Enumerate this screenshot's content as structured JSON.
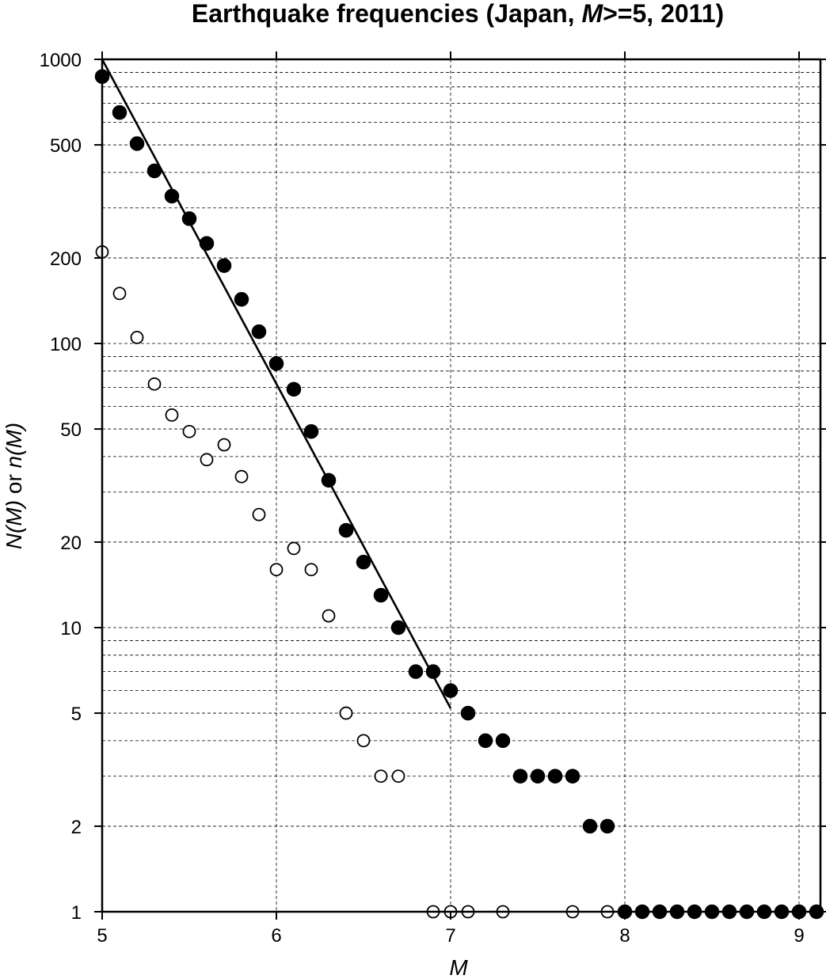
{
  "chart_data": {
    "type": "scatter",
    "title_parts": [
      "Earthquake frequencies (Japan, ",
      "M",
      ">=5, 2011)"
    ],
    "xlabel": "M",
    "ylabel_parts": [
      "N(M)",
      " or ",
      "n(M)"
    ],
    "xlim": [
      5,
      9.1
    ],
    "ylim": [
      1,
      1000
    ],
    "yscale": "log",
    "grid": true,
    "x_ticks": [
      5,
      6,
      7,
      8,
      9
    ],
    "y_ticks": [
      1,
      2,
      5,
      10,
      20,
      50,
      100,
      200,
      500,
      1000
    ],
    "series": [
      {
        "marker": "filled-circle",
        "points": [
          [
            5.0,
            870
          ],
          [
            5.1,
            650
          ],
          [
            5.2,
            505
          ],
          [
            5.3,
            405
          ],
          [
            5.4,
            330
          ],
          [
            5.5,
            275
          ],
          [
            5.6,
            225
          ],
          [
            5.7,
            188
          ],
          [
            5.8,
            143
          ],
          [
            5.9,
            110
          ],
          [
            6.0,
            85
          ],
          [
            6.1,
            69
          ],
          [
            6.2,
            49
          ],
          [
            6.3,
            33
          ],
          [
            6.4,
            22
          ],
          [
            6.5,
            17
          ],
          [
            6.6,
            13
          ],
          [
            6.7,
            10
          ],
          [
            6.8,
            7
          ],
          [
            6.9,
            7
          ],
          [
            7.0,
            6
          ],
          [
            7.1,
            5
          ],
          [
            7.2,
            4
          ],
          [
            7.3,
            4
          ],
          [
            7.4,
            3
          ],
          [
            7.5,
            3
          ],
          [
            7.6,
            3
          ],
          [
            7.7,
            3
          ],
          [
            7.8,
            2
          ],
          [
            7.9,
            2
          ],
          [
            8.0,
            1
          ],
          [
            8.1,
            1
          ],
          [
            8.2,
            1
          ],
          [
            8.3,
            1
          ],
          [
            8.4,
            1
          ],
          [
            8.5,
            1
          ],
          [
            8.6,
            1
          ],
          [
            8.7,
            1
          ],
          [
            8.8,
            1
          ],
          [
            8.9,
            1
          ],
          [
            9.0,
            1
          ],
          [
            9.1,
            1
          ]
        ]
      },
      {
        "marker": "open-circle",
        "points": [
          [
            5.0,
            210
          ],
          [
            5.1,
            150
          ],
          [
            5.2,
            105
          ],
          [
            5.3,
            72
          ],
          [
            5.4,
            56
          ],
          [
            5.5,
            49
          ],
          [
            5.6,
            39
          ],
          [
            5.7,
            44
          ],
          [
            5.8,
            34
          ],
          [
            5.9,
            25
          ],
          [
            6.0,
            16
          ],
          [
            6.1,
            19
          ],
          [
            6.2,
            16
          ],
          [
            6.3,
            11
          ],
          [
            6.4,
            5
          ],
          [
            6.5,
            4
          ],
          [
            6.6,
            3
          ],
          [
            6.7,
            3
          ],
          [
            6.9,
            1
          ],
          [
            7.0,
            1
          ],
          [
            7.1,
            1
          ],
          [
            7.3,
            1
          ],
          [
            7.7,
            1
          ],
          [
            7.9,
            1
          ]
        ]
      }
    ],
    "fit_line": {
      "x": [
        5.0,
        7.0
      ],
      "y": [
        1000,
        5.2
      ]
    }
  }
}
